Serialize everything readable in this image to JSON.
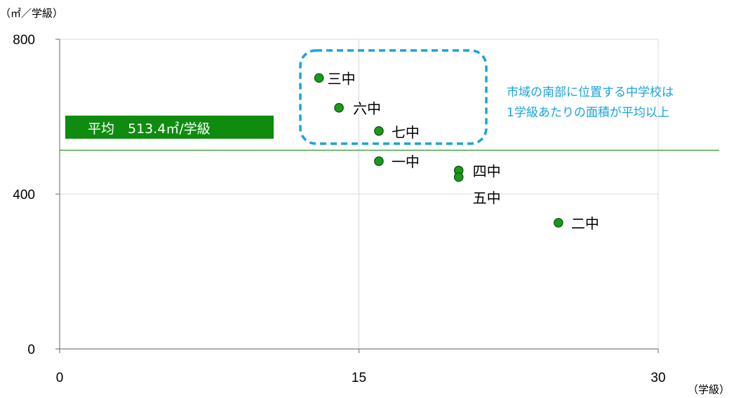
{
  "chart_data": {
    "type": "scatter",
    "y_unit_label": "（㎡／学級）",
    "x_unit_label": "（学級）",
    "xlim": [
      0,
      30
    ],
    "ylim": [
      0,
      800
    ],
    "x_ticks": [
      "0",
      "15",
      "30"
    ],
    "y_ticks": [
      "0",
      "400",
      "800"
    ],
    "grid": true,
    "points": [
      {
        "label": "三中",
        "x": 13,
        "y": 700
      },
      {
        "label": "六中",
        "x": 14,
        "y": 623
      },
      {
        "label": "七中",
        "x": 16,
        "y": 563
      },
      {
        "label": "一中",
        "x": 16,
        "y": 485
      },
      {
        "label": "四中",
        "x": 20,
        "y": 461
      },
      {
        "label": "五中",
        "x": 20,
        "y": 444
      },
      {
        "label": "二中",
        "x": 25,
        "y": 326
      }
    ],
    "average": {
      "value": 513.4,
      "label": "平均　513.4㎡/学級"
    },
    "annotation": {
      "lines": [
        "市域の南部に位置する中学校は",
        "1学級あたりの面積が平均以上"
      ]
    },
    "colors": {
      "point": "#1a9a1a",
      "point_stroke": "#0b4d0b",
      "average_line": "#2e9d2e",
      "average_box": "#0f8c0f",
      "annotation": "#1aa3d9",
      "grid": "#d9d9d9",
      "axis": "#7f7f7f"
    }
  }
}
